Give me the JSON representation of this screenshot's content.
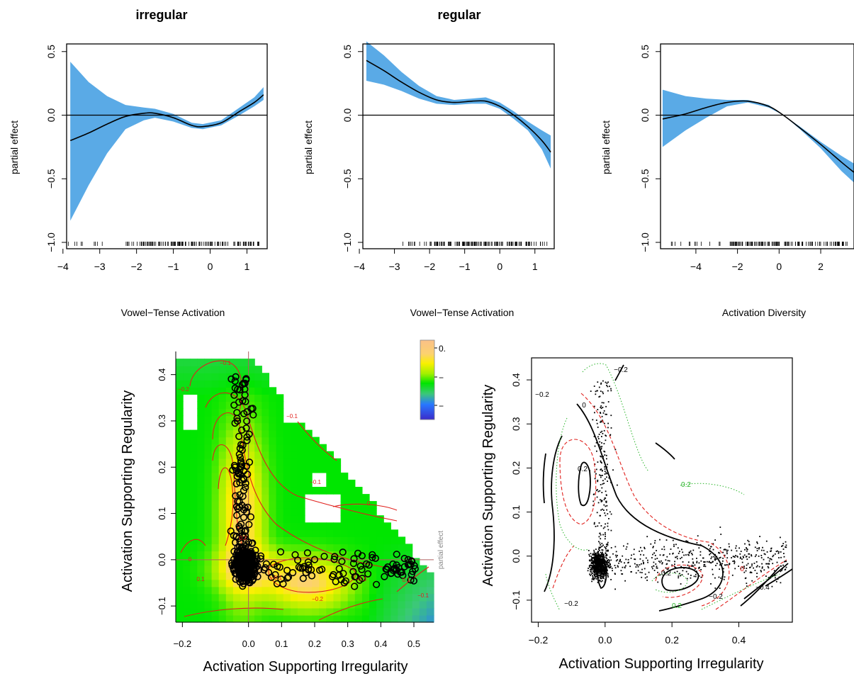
{
  "colors": {
    "band": "#5aaae6",
    "line": "#000000",
    "red": "#e0201c",
    "green": "#28b428"
  },
  "chart_data": [
    {
      "type": "line",
      "title": "irregular",
      "xlabel": "Vowel−Tense Activation",
      "ylabel": "partial effect",
      "xlim": [
        -3.9,
        1.55
      ],
      "ylim": [
        -1.05,
        0.56
      ],
      "xticks": [
        "−4",
        "−3",
        "−2",
        "−1",
        "0",
        "1"
      ],
      "yticks": [
        "−1.0",
        "−0.5",
        "0.0",
        "0.5"
      ],
      "reference_line": 0,
      "series": [
        {
          "x": [
            -3.8,
            -3.3,
            -2.8,
            -2.3,
            -1.8,
            -1.5,
            -1.0,
            -0.5,
            -0.2,
            0.3,
            0.8,
            1.2,
            1.45
          ],
          "y": [
            -0.2,
            -0.14,
            -0.07,
            -0.01,
            0.015,
            0.015,
            -0.02,
            -0.08,
            -0.09,
            -0.06,
            0.03,
            0.1,
            0.16
          ],
          "lower": [
            -0.83,
            -0.55,
            -0.3,
            -0.11,
            -0.04,
            -0.02,
            -0.05,
            -0.1,
            -0.11,
            -0.08,
            0.0,
            0.07,
            0.12
          ],
          "upper": [
            0.42,
            0.26,
            0.15,
            0.08,
            0.06,
            0.05,
            0.01,
            -0.06,
            -0.07,
            -0.04,
            0.06,
            0.14,
            0.22
          ]
        }
      ],
      "rug_note": "rug marks along x axis"
    },
    {
      "type": "line",
      "title": "regular",
      "xlabel": "Vowel−Tense Activation",
      "ylabel": "partial effect",
      "xlim": [
        -3.9,
        1.55
      ],
      "ylim": [
        -1.05,
        0.56
      ],
      "xticks": [
        "−4",
        "−3",
        "−2",
        "−1",
        "0",
        "1"
      ],
      "yticks": [
        "−1.0",
        "−0.5",
        "0.0",
        "0.5"
      ],
      "reference_line": 0,
      "series": [
        {
          "x": [
            -3.8,
            -3.3,
            -2.8,
            -2.3,
            -1.8,
            -1.3,
            -0.8,
            -0.4,
            0.0,
            0.4,
            0.8,
            1.2,
            1.45
          ],
          "y": [
            0.43,
            0.35,
            0.26,
            0.18,
            0.12,
            0.1,
            0.11,
            0.11,
            0.07,
            0.0,
            -0.09,
            -0.2,
            -0.29
          ],
          "lower": [
            0.27,
            0.24,
            0.19,
            0.13,
            0.09,
            0.08,
            0.09,
            0.09,
            0.05,
            -0.03,
            -0.12,
            -0.27,
            -0.42
          ],
          "upper": [
            0.58,
            0.47,
            0.34,
            0.23,
            0.15,
            0.12,
            0.13,
            0.14,
            0.1,
            0.03,
            -0.05,
            -0.12,
            -0.16
          ]
        }
      ]
    },
    {
      "type": "line",
      "title": "",
      "xlabel": "Activation Diversity",
      "ylabel": "partial effect",
      "xlim": [
        -5.7,
        3.6
      ],
      "ylim": [
        -1.05,
        0.56
      ],
      "xticks": [
        "−4",
        "−2",
        "0",
        "2"
      ],
      "yticks": [
        "−1.0",
        "−0.5",
        "0.0",
        "0.5"
      ],
      "reference_line": 0,
      "series": [
        {
          "x": [
            -5.6,
            -4.5,
            -3.5,
            -2.5,
            -1.5,
            -0.5,
            0.2,
            1.0,
            2.0,
            3.0,
            3.6
          ],
          "y": [
            -0.03,
            0.01,
            0.06,
            0.1,
            0.11,
            0.07,
            0.0,
            -0.1,
            -0.23,
            -0.37,
            -0.45
          ],
          "lower": [
            -0.25,
            -0.12,
            -0.02,
            0.07,
            0.1,
            0.06,
            0.0,
            -0.11,
            -0.26,
            -0.44,
            -0.53
          ],
          "upper": [
            0.2,
            0.15,
            0.13,
            0.12,
            0.12,
            0.08,
            0.0,
            -0.09,
            -0.21,
            -0.32,
            -0.38
          ]
        }
      ]
    },
    {
      "type": "heatmap",
      "xlabel": "Activation Supporting Irregularity",
      "ylabel": "Activation Supporting Regularity",
      "xlim": [
        -0.22,
        0.56
      ],
      "ylim": [
        -0.135,
        0.45
      ],
      "xticks": [
        "−0.2",
        "0.0",
        "0.1",
        "0.2",
        "0.3",
        "0.4",
        "0.5"
      ],
      "yticks": [
        "−0.1",
        "0.0",
        "0.1",
        "0.2",
        "0.3",
        "0.4"
      ],
      "colorbar_labels": [
        "0.",
        "−",
        "−"
      ],
      "colorbar_title": "partial effect",
      "contour_labels": [
        "−0.2",
        "−0.1",
        "−0.1",
        "−0.1",
        "0",
        "0",
        "0.1",
        "0.2",
        "−0.1",
        "−0.2",
        "−0.3",
        "0.1",
        "−0.1"
      ]
    },
    {
      "type": "scatter",
      "xlabel": "Activation Supporting Irregularity",
      "ylabel": "Activation Supporting Regularity",
      "xlim": [
        -0.22,
        0.56
      ],
      "ylim": [
        -0.15,
        0.45
      ],
      "xticks": [
        "−0.2",
        "0.0",
        "0.2",
        "0.4"
      ],
      "yticks": [
        "−0.1",
        "0.0",
        "0.1",
        "0.2",
        "0.3",
        "0.4"
      ],
      "contour_labels": [
        "−0.2",
        "−0.2",
        "0",
        "0.2",
        "0.2",
        "−0.2",
        "0",
        "0.2",
        "−0.2",
        "−0.4",
        "0.2"
      ]
    }
  ]
}
